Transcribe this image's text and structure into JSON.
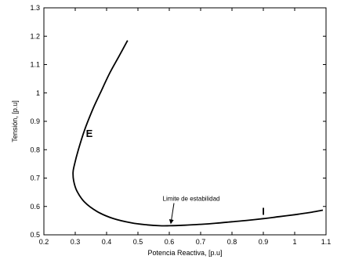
{
  "chart_data": {
    "type": "line",
    "xlabel": "Potencia Reactiva, [p.u]",
    "ylabel": "Tensión, [p.u]",
    "xlim": [
      0.2,
      1.1
    ],
    "ylim": [
      0.5,
      1.3
    ],
    "xticks": [
      "0.2",
      "0.3",
      "0.4",
      "0.5",
      "0.6",
      "0.7",
      "0.8",
      "0.9",
      "1",
      "1.1"
    ],
    "yticks": [
      "0.5",
      "0.6",
      "0.7",
      "0.8",
      "0.9",
      "1",
      "1.1",
      "1.2",
      "1.3"
    ],
    "grid": false,
    "series": [
      {
        "color": "#000000",
        "x": [
          0.467,
          0.44,
          0.41,
          0.38,
          0.355,
          0.33,
          0.31,
          0.297,
          0.293,
          0.295,
          0.305,
          0.33,
          0.37,
          0.42,
          0.48,
          0.53,
          0.57,
          0.6,
          0.65,
          0.7,
          0.75,
          0.8,
          0.85,
          0.9,
          0.95,
          1.0,
          1.05,
          1.09
        ],
        "y": [
          1.185,
          1.13,
          1.07,
          1.0,
          0.94,
          0.87,
          0.8,
          0.745,
          0.72,
          0.69,
          0.655,
          0.615,
          0.582,
          0.558,
          0.542,
          0.535,
          0.532,
          0.532,
          0.534,
          0.537,
          0.541,
          0.546,
          0.551,
          0.557,
          0.564,
          0.571,
          0.579,
          0.587
        ]
      }
    ],
    "annotations": [
      {
        "text": "Limite de estabilidad",
        "x": 0.6,
        "y": 0.532,
        "tx": 0.67,
        "ty": 0.62
      },
      {
        "text": "E",
        "x": 0.345,
        "y": 0.845
      },
      {
        "text": "I",
        "x": 0.9,
        "y": 0.57
      }
    ]
  }
}
